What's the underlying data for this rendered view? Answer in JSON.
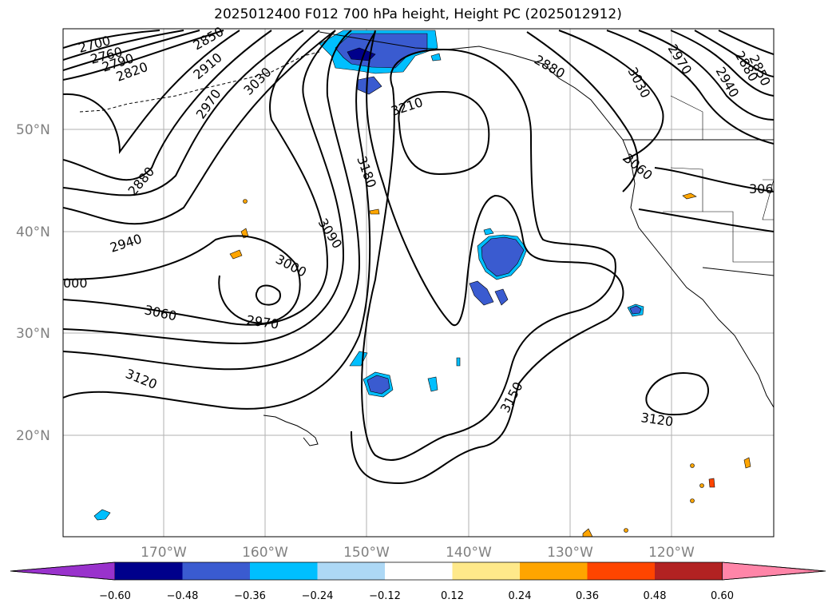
{
  "title": "2025012400 F012 700 hPa height, Height PC (2025012912)",
  "latitude_labels": [
    "50°N",
    "40°N",
    "30°N",
    "20°N"
  ],
  "longitude_labels": [
    "170°W",
    "160°W",
    "150°W",
    "140°W",
    "130°W",
    "120°W"
  ],
  "contour_labels": {
    "upper_left": [
      "2700",
      "2760",
      "2790",
      "2820",
      "2850",
      "2910",
      "2970",
      "3030"
    ],
    "west": [
      "2880",
      "2940",
      "000",
      "3060",
      "3120"
    ],
    "low": [
      "3000",
      "2970",
      "3090"
    ],
    "ridge": [
      "3210",
      "3180",
      "3150"
    ],
    "east": [
      "2970",
      "2880",
      "2850",
      "2940",
      "3030",
      "3060",
      "306",
      "3120"
    ],
    "coast": [
      "2880"
    ]
  },
  "colorbar": {
    "ticks": [
      "−0.60",
      "−0.48",
      "−0.36",
      "−0.24",
      "−0.12",
      "0.12",
      "0.24",
      "0.36",
      "0.48",
      "0.60"
    ],
    "colors": [
      "#9932cc",
      "#00008b",
      "#3a5bd0",
      "#00bfff",
      "#add8f5",
      "#ffffff",
      "#ffe98a",
      "#ffa500",
      "#ff4500",
      "#b22222",
      "#ff85a8"
    ]
  },
  "colors": {
    "contour": "#000000",
    "grid": "#a0a0a0",
    "axis_label": "#808080",
    "negative_strong": "#3a5bd0",
    "negative": "#00bfff",
    "positive": "#ffa500"
  }
}
